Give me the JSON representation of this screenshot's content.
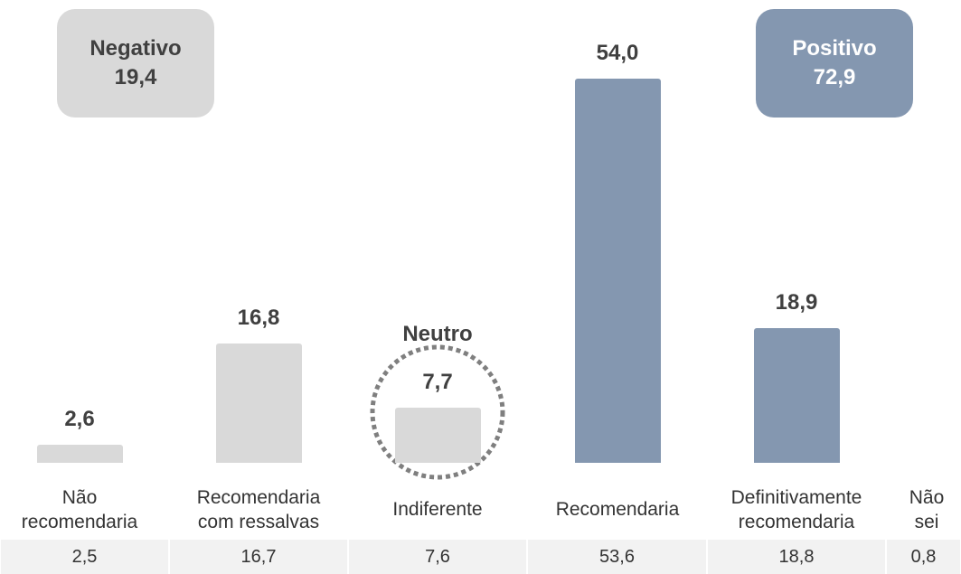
{
  "chart_data": {
    "type": "bar",
    "categories": [
      "Não recomendaria",
      "Recomendaria com ressalvas",
      "Indiferente",
      "Recomendaria",
      "Definitivamente recomendaria",
      "Não sei"
    ],
    "values": [
      2.6,
      16.8,
      7.7,
      54.0,
      18.9,
      null
    ],
    "value_labels": [
      "2,6",
      "16,8",
      "7,7",
      "54,0",
      "18,9",
      null
    ],
    "colors": [
      "#d9d9d9",
      "#d9d9d9",
      "#d9d9d9",
      "#8497b0",
      "#8497b0",
      null
    ],
    "ylim": [
      0,
      65
    ],
    "groups": [
      {
        "label": "Negativo",
        "value": 19.4,
        "value_label": "19,4",
        "color": "#d9d9d9"
      },
      {
        "label": "Positivo",
        "value": 72.9,
        "value_label": "72,9",
        "color": "#8497b0"
      }
    ],
    "annotation": "Neutro",
    "table_row": [
      "2,5",
      "16,7",
      "7,6",
      "53,6",
      "18,8",
      "0,8"
    ]
  }
}
